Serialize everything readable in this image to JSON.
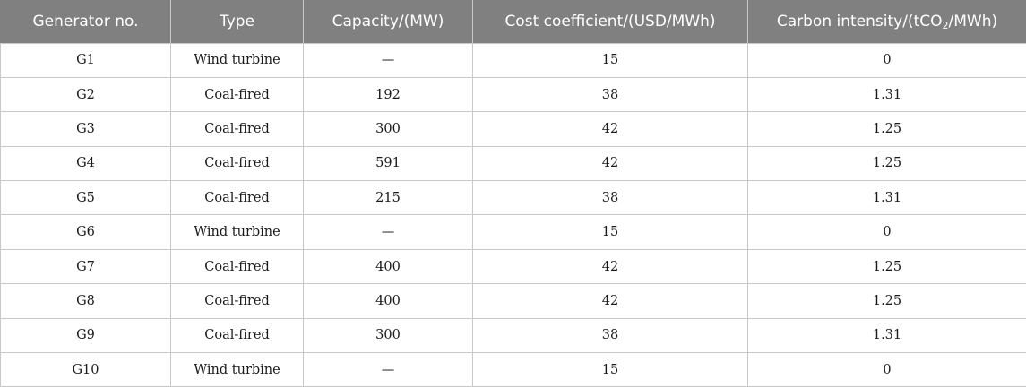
{
  "table": {
    "headers": [
      "Generator no.",
      "Type",
      "Capacity/(MW)",
      "Cost coefficient/(USD/MWh)",
      "Carbon intensity/(tCO"
    ],
    "carbon_header_sub": "2",
    "carbon_header_tail": "/MWh)",
    "rows": [
      [
        "G1",
        "Wind turbine",
        "—",
        "15",
        "0"
      ],
      [
        "G2",
        "Coal-fired",
        "192",
        "38",
        "1.31"
      ],
      [
        "G3",
        "Coal-fired",
        "300",
        "42",
        "1.25"
      ],
      [
        "G4",
        "Coal-fired",
        "591",
        "42",
        "1.25"
      ],
      [
        "G5",
        "Coal-fired",
        "215",
        "38",
        "1.31"
      ],
      [
        "G6",
        "Wind turbine",
        "—",
        "15",
        "0"
      ],
      [
        "G7",
        "Coal-fired",
        "400",
        "42",
        "1.25"
      ],
      [
        "G8",
        "Coal-fired",
        "400",
        "42",
        "1.25"
      ],
      [
        "G9",
        "Coal-fired",
        "300",
        "38",
        "1.31"
      ],
      [
        "G10",
        "Wind turbine",
        "—",
        "15",
        "0"
      ]
    ]
  }
}
